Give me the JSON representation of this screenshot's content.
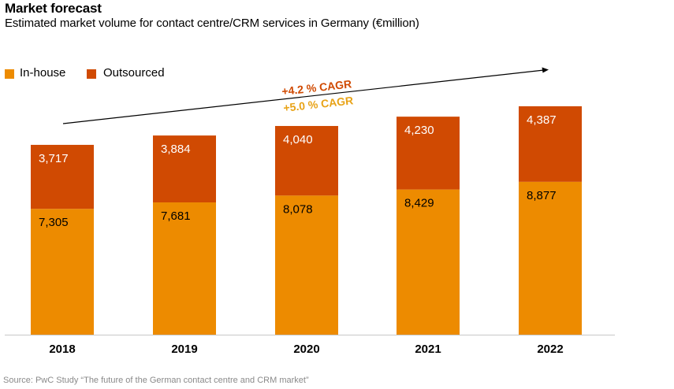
{
  "title": "Market forecast",
  "subtitle": "Estimated market volume for contact centre/CRM services in Germany (€million)",
  "source": "Source: PwC Study “The future of the German contact centre and CRM market”",
  "colors": {
    "in_house": "#ED8B00",
    "outsourced": "#D04A02",
    "in_house_label": "#E8A317",
    "outsourced_label": "#D04A02"
  },
  "chart_data": {
    "type": "bar",
    "stacked": true,
    "categories": [
      "2018",
      "2019",
      "2020",
      "2021",
      "2022"
    ],
    "series": [
      {
        "name": "In-house",
        "values": [
          7305,
          7681,
          8078,
          8429,
          8877
        ]
      },
      {
        "name": "Outsourced",
        "values": [
          3717,
          3884,
          4040,
          4230,
          4387
        ]
      }
    ],
    "value_labels": {
      "In-house": [
        "7,305",
        "7,681",
        "8,078",
        "8,429",
        "8,877"
      ],
      "Outsourced": [
        "3,717",
        "3,884",
        "4,040",
        "4,230",
        "4,387"
      ]
    },
    "annotations": [
      {
        "text": "+4.2 % CAGR",
        "series": "Outsourced"
      },
      {
        "text": "+5.0 % CAGR",
        "series": "In-house"
      }
    ],
    "legend_position": "top-left",
    "ylim": [
      0,
      14000
    ],
    "grid": false,
    "xlabel": "",
    "ylabel": ""
  }
}
